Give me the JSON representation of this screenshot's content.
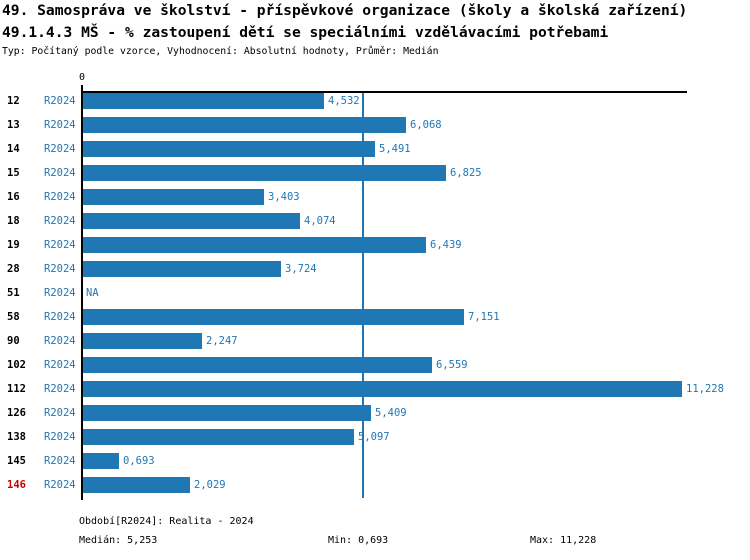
{
  "header": {
    "title_line1": "49. Samospráva ve školství - příspěvkové organizace (školy a školská zařízení)",
    "title_line2": "49.1.4.3 MŠ - % zastoupení dětí se speciálními vzdělávacími potřebami",
    "subtitle": "Typ: Počítaný podle vzorce, Vyhodnocení: Absolutní hodnoty, Průměr: Medián"
  },
  "chart_data": {
    "type": "bar",
    "orientation": "horizontal",
    "title": "49.1.4.3 MŠ - % zastoupení dětí se speciálními vzdělávacími potřebami",
    "categories": [
      "12",
      "13",
      "14",
      "15",
      "16",
      "18",
      "19",
      "28",
      "51",
      "58",
      "90",
      "102",
      "112",
      "126",
      "138",
      "145",
      "146"
    ],
    "series": [
      {
        "name": "R2024",
        "values": [
          4.532,
          6.068,
          5.491,
          6.825,
          3.403,
          4.074,
          6.439,
          3.724,
          null,
          7.151,
          2.247,
          6.559,
          11.228,
          5.409,
          5.097,
          0.693,
          2.029
        ]
      }
    ],
    "value_labels": [
      "4,532",
      "6,068",
      "5,491",
      "6,825",
      "3,403",
      "4,074",
      "6,439",
      "3,724",
      "NA",
      "7,151",
      "2,247",
      "6,559",
      "11,228",
      "5,409",
      "5,097",
      "0,693",
      "2,029"
    ],
    "na_label": "NA",
    "highlighted_category": "146",
    "x_axis": {
      "zero_label": "0",
      "xlim": [
        0,
        11.34
      ],
      "median_line_value": 5.253,
      "grid": false
    },
    "legend_position": "none",
    "stats": {
      "median": 5.253,
      "min": 0.693,
      "max": 11.228
    },
    "colors": {
      "bar": "#1f77b4",
      "blue_text": "#1f77b4",
      "median_line": "#1f77b4",
      "highlight_red": "#cc0000",
      "axis_black": "#000000"
    }
  },
  "footer": {
    "period": "Období[R2024]: Realita - 2024",
    "median": "Medián: 5,253",
    "min": "Min: 0,693",
    "max": "Max: 11,228"
  }
}
